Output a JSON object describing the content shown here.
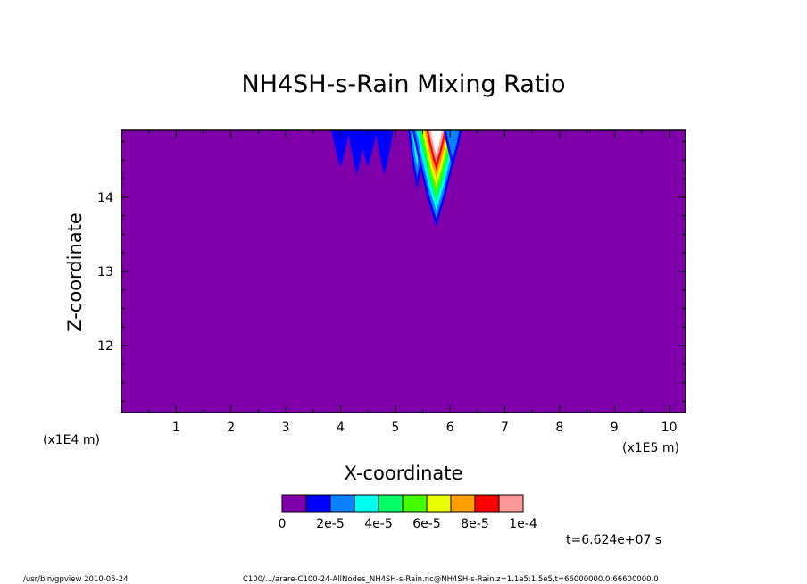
{
  "chart_data": {
    "type": "heatmap",
    "title": "NH4SH-s-Rain Mixing Ratio",
    "xlabel": "X-coordinate",
    "ylabel": "Z-coordinate",
    "x_multiplier_label": "(x1E5 m)",
    "z_multiplier_label": "(x1E4 m)",
    "xlim": [
      0,
      10.3
    ],
    "ylim": [
      11.1,
      14.9
    ],
    "x_ticks": [
      "1",
      "2",
      "3",
      "4",
      "5",
      "6",
      "7",
      "8",
      "9",
      "10"
    ],
    "y_ticks": [
      "12",
      "13",
      "14"
    ],
    "background_value": 0,
    "contour_levels": [
      0,
      1e-05,
      2e-05,
      3e-05,
      4e-05,
      5e-05,
      6e-05,
      7e-05,
      8e-05,
      9e-05,
      0.0001
    ],
    "colors": [
      "#7f00aa",
      "#0000ff",
      "#0a82ff",
      "#00ffee",
      "#00ff66",
      "#44ff00",
      "#e8ff00",
      "#ffa000",
      "#ff0000",
      "#ff9999"
    ],
    "above_max_color": "#ffffff",
    "colorbar_labels": [
      "0",
      "2e-5",
      "4e-5",
      "6e-5",
      "8e-5",
      "1e-4"
    ],
    "features": [
      {
        "x": 4.0,
        "z_bottom": 14.4,
        "level": 1
      },
      {
        "x": 4.3,
        "z_bottom": 14.3,
        "level": 1
      },
      {
        "x": 4.5,
        "z_bottom": 14.4,
        "level": 1
      },
      {
        "x": 4.8,
        "z_bottom": 14.3,
        "level": 1
      },
      {
        "x": 5.4,
        "z_bottom": 14.1,
        "level": 3
      },
      {
        "x": 5.75,
        "z_bottom": 13.6,
        "level": 10
      },
      {
        "x": 6.05,
        "z_bottom": 14.4,
        "level": 2
      }
    ]
  },
  "time_label": "t=6.624e+07 s",
  "footer": {
    "left": "/usr/bin/gpview   2010-05-24",
    "right": "C100/.../arare-C100-24-AllNodes_NH4SH-s-Rain.nc@NH4SH-s-Rain,z=1.1e5:1.5e5,t=66000000.0:66600000.0"
  }
}
